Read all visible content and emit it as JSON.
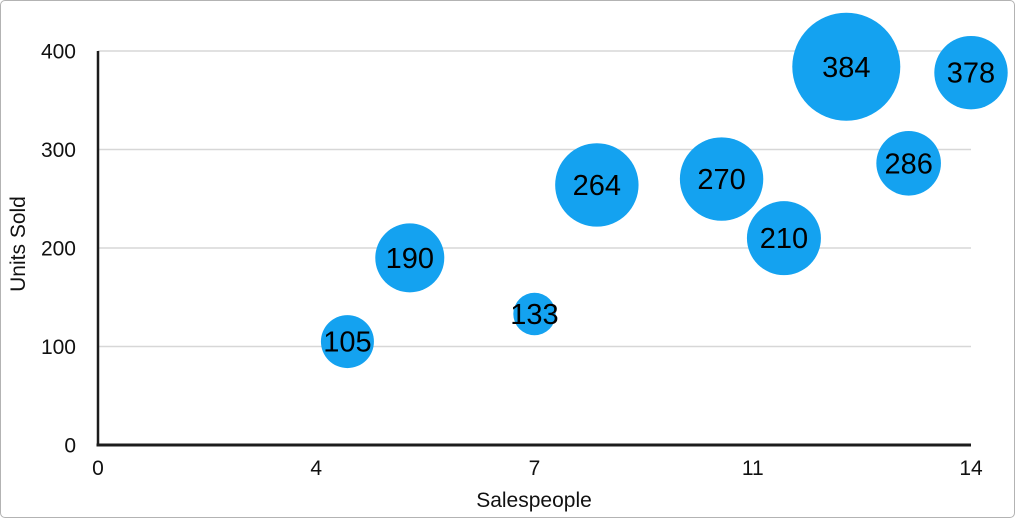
{
  "chart_data": {
    "type": "scatter",
    "subtype": "bubble",
    "title": "",
    "xlabel": "Salespeople",
    "ylabel": "Units Sold",
    "xlim": [
      0,
      14
    ],
    "ylim": [
      0,
      400
    ],
    "x_tick_labels": [
      "0",
      "4",
      "7",
      "11",
      "14"
    ],
    "x_ticks_evenly_spaced": true,
    "y_tick_values": [
      0,
      100,
      200,
      300,
      400
    ],
    "grid": "horizontal-only",
    "legend_position": "none",
    "series": [
      {
        "name": "Units Sold",
        "points": [
          {
            "x": 4,
            "y": 105,
            "label": "105",
            "radius_px": 26.5
          },
          {
            "x": 5,
            "y": 190,
            "label": "190",
            "radius_px": 34.5
          },
          {
            "x": 7,
            "y": 133,
            "label": "133",
            "radius_px": 21.2
          },
          {
            "x": 8,
            "y": 264,
            "label": "264",
            "radius_px": 41.7
          },
          {
            "x": 10,
            "y": 270,
            "label": "270",
            "radius_px": 41.7
          },
          {
            "x": 11,
            "y": 210,
            "label": "210",
            "radius_px": 37
          },
          {
            "x": 12,
            "y": 384,
            "label": "384",
            "radius_px": 54
          },
          {
            "x": 13,
            "y": 286,
            "label": "286",
            "radius_px": 32.3
          },
          {
            "x": 14,
            "y": 378,
            "label": "378",
            "radius_px": 36.7
          }
        ]
      }
    ],
    "colors": {
      "bubble_fill": "#14a2f0",
      "bubble_label": "#000000",
      "gridline": "#d7d7d7",
      "axis_line": "#1c1c1c",
      "tick_text": "#111111"
    }
  }
}
